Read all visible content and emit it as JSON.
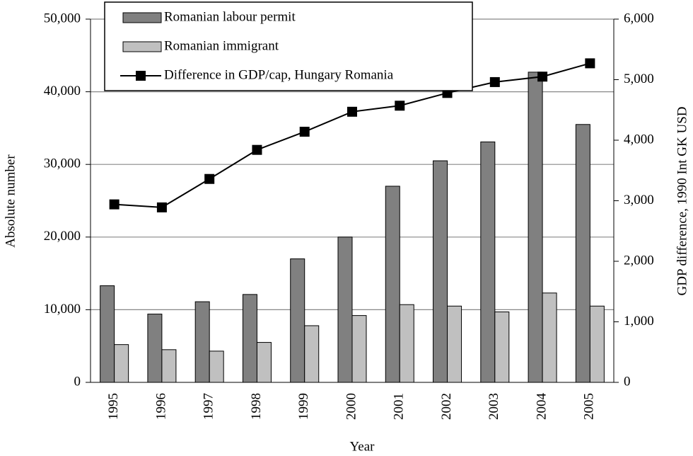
{
  "chart_data": {
    "type": "bar",
    "x_label": "Year",
    "y_label": "Absolute number",
    "y2_label": "GDP difference, 1990 Int GK USD",
    "categories": [
      "1995",
      "1996",
      "1997",
      "1998",
      "1999",
      "2000",
      "2001",
      "2002",
      "2003",
      "2004",
      "2005"
    ],
    "series": [
      {
        "name": "Romanian labour permit",
        "type": "bar",
        "color": "#808080",
        "values": [
          13300,
          9400,
          11100,
          12100,
          17000,
          20000,
          27000,
          30500,
          33100,
          42700,
          35500
        ]
      },
      {
        "name": "Romanian immigrant",
        "type": "bar",
        "color": "#c0c0c0",
        "values": [
          5200,
          4500,
          4300,
          5500,
          7800,
          9200,
          10700,
          10500,
          9700,
          12300,
          10500
        ]
      },
      {
        "name": "Difference in GDP/cap, Hungary Romania",
        "type": "line",
        "axis": "y2",
        "color": "#000000",
        "values": [
          2940,
          2890,
          3360,
          3840,
          4140,
          4470,
          4570,
          4780,
          4960,
          5050,
          5270
        ]
      }
    ],
    "ylim": [
      0,
      50000
    ],
    "yticks": [
      0,
      {
        "value": 10000,
        "label": "10,000"
      },
      {
        "value": 20000,
        "label": "20,000"
      },
      {
        "value": 30000,
        "label": "30,000"
      },
      {
        "value": 40000,
        "label": "40,000"
      },
      {
        "value": 50000,
        "label": "50,000"
      }
    ],
    "y2lim": [
      0,
      6000
    ],
    "y2ticks": [
      0,
      {
        "value": 1000,
        "label": "1,000"
      },
      {
        "value": 2000,
        "label": "2,000"
      },
      {
        "value": 3000,
        "label": "3,000"
      },
      {
        "value": 4000,
        "label": "4,000"
      },
      {
        "value": 5000,
        "label": "5,000"
      },
      {
        "value": 6000,
        "label": "6,000"
      }
    ],
    "grid": true,
    "legend": "upper left"
  }
}
